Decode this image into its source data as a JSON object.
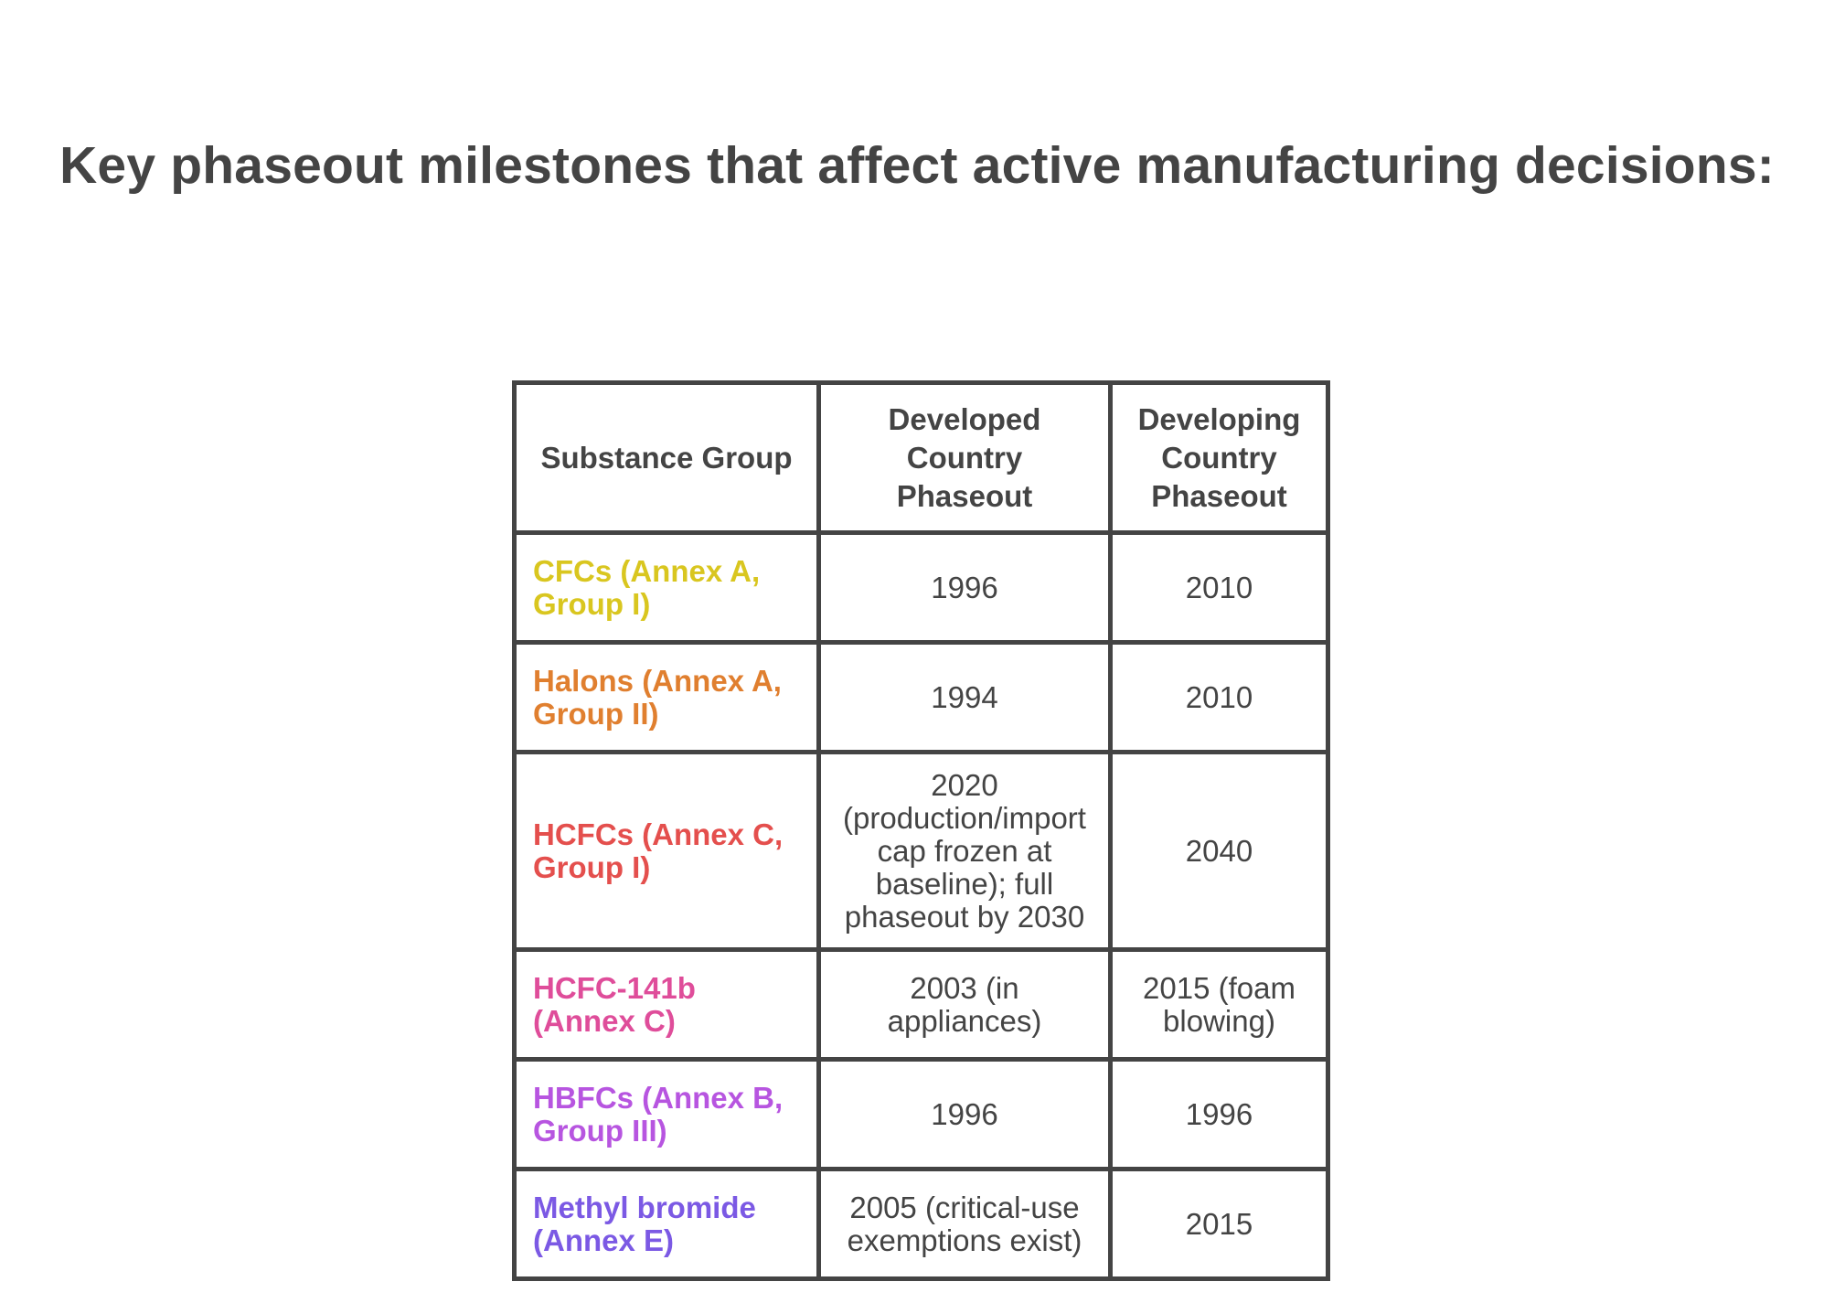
{
  "title": "Key phaseout milestones that affect active manufacturing decisions:",
  "table": {
    "headers": [
      "Substance Group",
      "Developed Country Phaseout",
      "Developing Country Phaseout"
    ],
    "rows": [
      {
        "substance": "CFCs (Annex A, Group I)",
        "color": "#d9c61f",
        "developed": "1996",
        "developing": "2010"
      },
      {
        "substance": "Halons (Annex A, Group II)",
        "color": "#e07f2f",
        "developed": "1994",
        "developing": "2010"
      },
      {
        "substance": "HCFCs (Annex C, Group I)",
        "color": "#e44f4d",
        "developed": "2020 (production/import cap frozen at baseline); full phaseout by 2030",
        "developing": "2040"
      },
      {
        "substance": "HCFC-141b (Annex C)",
        "color": "#df4d9a",
        "developed": "2003 (in appliances)",
        "developing": "2015 (foam blowing)"
      },
      {
        "substance": "HBFCs (Annex B, Group III)",
        "color": "#b755e0",
        "developed": "1996",
        "developing": "1996"
      },
      {
        "substance": "Methyl bromide (Annex E)",
        "color": "#7b59e4",
        "developed": "2005 (critical-use exemptions exist)",
        "developing": "2015"
      }
    ]
  }
}
